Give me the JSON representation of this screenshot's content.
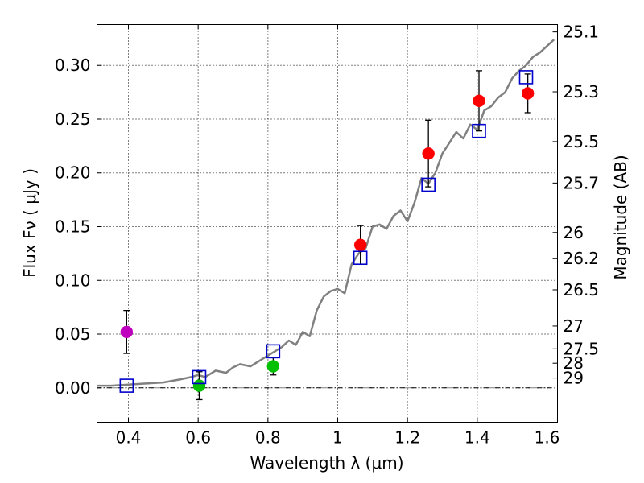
{
  "chart_data": {
    "type": "scatter",
    "xlabel": "Wavelength  λ (μm)",
    "ylabel": "Flux  Fν  ( μJy )",
    "ylabel_right": "Magnitude (AB)",
    "xlim": [
      0.31,
      1.63
    ],
    "ylim": [
      -0.032,
      0.338
    ],
    "xticks": [
      0.4,
      0.6,
      0.8,
      1.0,
      1.2,
      1.4,
      1.6
    ],
    "xtick_labels": [
      "0.4",
      "0.6",
      "0.8",
      "1",
      "1.2",
      "1.4",
      "1.6"
    ],
    "yticks": [
      0.0,
      0.05,
      0.1,
      0.15,
      0.2,
      0.25,
      0.3
    ],
    "ytick_labels": [
      "0.00",
      "0.05",
      "0.10",
      "0.15",
      "0.20",
      "0.25",
      "0.30"
    ],
    "mag_ticks": [
      "25.1",
      "25.3",
      "25.5",
      "25.7",
      "26",
      "26.2",
      "26.5",
      "27",
      "27.5",
      "28",
      "29"
    ],
    "grid": true,
    "colors": {
      "model": "#808080",
      "red": "#ff0000",
      "green": "#00c000",
      "magenta": "#bf00bf",
      "model_box": "#0000cc",
      "errorbar": "#000000"
    },
    "model_spectrum": {
      "name": "template spectrum",
      "x": [
        0.31,
        0.35,
        0.4,
        0.45,
        0.5,
        0.55,
        0.58,
        0.6,
        0.62,
        0.65,
        0.68,
        0.7,
        0.72,
        0.75,
        0.78,
        0.8,
        0.82,
        0.84,
        0.86,
        0.88,
        0.9,
        0.92,
        0.94,
        0.96,
        0.98,
        1.0,
        1.02,
        1.04,
        1.06,
        1.08,
        1.1,
        1.12,
        1.14,
        1.16,
        1.18,
        1.2,
        1.22,
        1.24,
        1.26,
        1.28,
        1.3,
        1.32,
        1.34,
        1.36,
        1.38,
        1.4,
        1.42,
        1.44,
        1.46,
        1.48,
        1.5,
        1.52,
        1.54,
        1.56,
        1.58,
        1.6,
        1.62
      ],
      "y": [
        0.002,
        0.002,
        0.003,
        0.004,
        0.005,
        0.008,
        0.01,
        0.012,
        0.01,
        0.016,
        0.014,
        0.019,
        0.022,
        0.02,
        0.026,
        0.03,
        0.034,
        0.038,
        0.044,
        0.04,
        0.052,
        0.048,
        0.072,
        0.085,
        0.09,
        0.092,
        0.088,
        0.115,
        0.125,
        0.13,
        0.15,
        0.152,
        0.148,
        0.16,
        0.165,
        0.155,
        0.172,
        0.195,
        0.19,
        0.2,
        0.218,
        0.228,
        0.238,
        0.232,
        0.245,
        0.24,
        0.258,
        0.262,
        0.27,
        0.275,
        0.288,
        0.295,
        0.3,
        0.308,
        0.312,
        0.318,
        0.324
      ]
    },
    "series": [
      {
        "name": "magenta point",
        "color_key": "magenta",
        "x": [
          0.395
        ],
        "y": [
          0.052
        ],
        "yerr": [
          0.02
        ]
      },
      {
        "name": "green points",
        "color_key": "green",
        "x": [
          0.603,
          0.815
        ],
        "y": [
          0.002,
          0.02
        ],
        "yerr": [
          0.013,
          0.008
        ]
      },
      {
        "name": "red points",
        "color_key": "red",
        "x": [
          1.065,
          1.26,
          1.405,
          1.545
        ],
        "y": [
          0.133,
          0.218,
          0.267,
          0.274
        ],
        "yerr": [
          0.018,
          0.031,
          0.028,
          0.018
        ]
      },
      {
        "name": "model photometry",
        "color_key": "model_box",
        "marker": "square",
        "x": [
          0.395,
          0.603,
          0.815,
          1.065,
          1.26,
          1.405,
          1.54
        ],
        "y": [
          0.002,
          0.01,
          0.034,
          0.121,
          0.189,
          0.239,
          0.289
        ]
      }
    ]
  }
}
